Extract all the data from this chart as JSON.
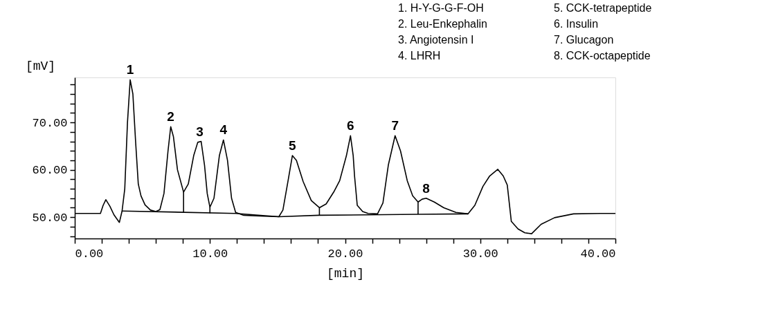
{
  "chart_data": {
    "type": "line",
    "xlabel": "[min]",
    "ylabel": "[mV]",
    "legend": false,
    "grid": false,
    "marker": "none",
    "line_style": "solid",
    "xlim": [
      0,
      40
    ],
    "ylim": [
      45.5,
      79.5
    ],
    "xticks": [
      {
        "value": 0,
        "label": "0.00"
      },
      {
        "value": 2,
        "label": null
      },
      {
        "value": 4,
        "label": null
      },
      {
        "value": 6,
        "label": null
      },
      {
        "value": 8,
        "label": null
      },
      {
        "value": 10,
        "label": "10.00"
      },
      {
        "value": 12,
        "label": null
      },
      {
        "value": 14,
        "label": null
      },
      {
        "value": 16,
        "label": null
      },
      {
        "value": 18,
        "label": null
      },
      {
        "value": 20,
        "label": "20.00"
      },
      {
        "value": 22,
        "label": null
      },
      {
        "value": 24,
        "label": null
      },
      {
        "value": 26,
        "label": null
      },
      {
        "value": 28,
        "label": null
      },
      {
        "value": 30,
        "label": "30.00"
      },
      {
        "value": 32,
        "label": null
      },
      {
        "value": 34,
        "label": null
      },
      {
        "value": 36,
        "label": null
      },
      {
        "value": 38,
        "label": null
      },
      {
        "value": 40,
        "label": "40.00"
      }
    ],
    "yticks": [
      {
        "value": 46,
        "label": null
      },
      {
        "value": 48,
        "label": null
      },
      {
        "value": 50,
        "label": "50.00"
      },
      {
        "value": 52,
        "label": null
      },
      {
        "value": 54,
        "label": null
      },
      {
        "value": 56,
        "label": null
      },
      {
        "value": 58,
        "label": null
      },
      {
        "value": 60,
        "label": "60.00"
      },
      {
        "value": 62,
        "label": null
      },
      {
        "value": 64,
        "label": null
      },
      {
        "value": 66,
        "label": null
      },
      {
        "value": 68,
        "label": null
      },
      {
        "value": 70,
        "label": "70.00"
      },
      {
        "value": 72,
        "label": null
      },
      {
        "value": 74,
        "label": null
      },
      {
        "value": 76,
        "label": null
      },
      {
        "value": 78,
        "label": null
      }
    ],
    "series": [
      {
        "color": "#000000",
        "x": [
          0,
          1.9,
          2.1,
          2.3,
          2.6,
          2.9,
          3.3,
          3.5,
          3.7,
          3.9,
          4.1,
          4.3,
          4.5,
          4.7,
          4.9,
          5.2,
          5.6,
          6.0,
          6.3,
          6.6,
          6.9,
          7.1,
          7.3,
          7.6,
          8.05,
          8.4,
          8.8,
          9.1,
          9.35,
          9.6,
          9.8,
          10.0,
          10.3,
          10.7,
          11.0,
          11.3,
          11.6,
          11.9,
          12.5,
          14,
          15.1,
          15.4,
          15.8,
          16.1,
          16.4,
          16.9,
          17.5,
          18.1,
          18.6,
          19.2,
          19.6,
          20.1,
          20.4,
          20.6,
          20.7,
          20.9,
          21.3,
          21.7,
          22.4,
          22.8,
          23.2,
          23.7,
          24.1,
          24.6,
          25.0,
          25.4,
          25.7,
          26.0,
          26.6,
          27.3,
          28.2,
          29.1,
          29.6,
          30.2,
          30.7,
          31.3,
          31.7,
          32.0,
          32.3,
          32.8,
          33.3,
          33.8,
          34.5,
          35.5,
          36.9,
          38.9,
          40
        ],
        "values": [
          50.8,
          50.8,
          52.5,
          53.7,
          52.3,
          50.5,
          48.9,
          51.3,
          56,
          70,
          79.0,
          76,
          66,
          57,
          54.5,
          52.6,
          51.5,
          51.2,
          51.6,
          55,
          64,
          69.1,
          67,
          60,
          55.3,
          57,
          63,
          65.8,
          66.0,
          61,
          55,
          52.1,
          54,
          63,
          66.3,
          62,
          54,
          51.0,
          50.4,
          50.2,
          50.1,
          51.5,
          58,
          63.0,
          62,
          57.5,
          53.5,
          52.0,
          52.8,
          55.5,
          57.7,
          63,
          67.2,
          63,
          58.7,
          52.5,
          51.2,
          50.8,
          50.7,
          53,
          61,
          67.2,
          64,
          57.7,
          54.5,
          53.2,
          53.8,
          54.0,
          53.2,
          52.0,
          51.0,
          50.7,
          52.5,
          56.5,
          58.7,
          60.1,
          58.7,
          56.8,
          49.1,
          47.5,
          46.7,
          46.5,
          48.5,
          49.9,
          50.7,
          50.8,
          50.8
        ]
      },
      {
        "color": "#000000",
        "x": [
          3.5,
          11.9,
          15.1,
          18.1,
          25.4,
          29.1
        ],
        "values": [
          51.3,
          50.8,
          50.1,
          50.4,
          50.6,
          50.7
        ]
      },
      {
        "color": "#000000",
        "x": [
          8.05,
          8.05
        ],
        "values": [
          50.9,
          55.3
        ]
      },
      {
        "color": "#000000",
        "x": [
          10.0,
          10.0
        ],
        "values": [
          50.8,
          52.1
        ]
      },
      {
        "color": "#000000",
        "x": [
          18.1,
          18.1
        ],
        "values": [
          50.4,
          52.0
        ]
      },
      {
        "color": "#000000",
        "x": [
          25.4,
          25.4
        ],
        "values": [
          50.6,
          53.2
        ]
      }
    ],
    "annotations": [
      {
        "text": "1",
        "x": 4.1,
        "y": 79.0
      },
      {
        "text": "2",
        "x": 7.1,
        "y": 69.1
      },
      {
        "text": "3",
        "x": 9.25,
        "y": 66.0
      },
      {
        "text": "4",
        "x": 11.0,
        "y": 66.3
      },
      {
        "text": "5",
        "x": 16.1,
        "y": 63.0
      },
      {
        "text": "6",
        "x": 20.4,
        "y": 67.2
      },
      {
        "text": "7",
        "x": 23.7,
        "y": 67.2
      },
      {
        "text": "8",
        "x": 26.0,
        "y": 54.0
      },
      "1.  H-Y-G-G-F-OH",
      "2.  Leu-Enkephalin",
      "3.  Angiotensin I",
      "4.  LHRH",
      "5.  CCK-tetrapeptide",
      "6.  Insulin",
      "7.  Glucagon",
      "8.  CCK-octapeptide"
    ]
  }
}
